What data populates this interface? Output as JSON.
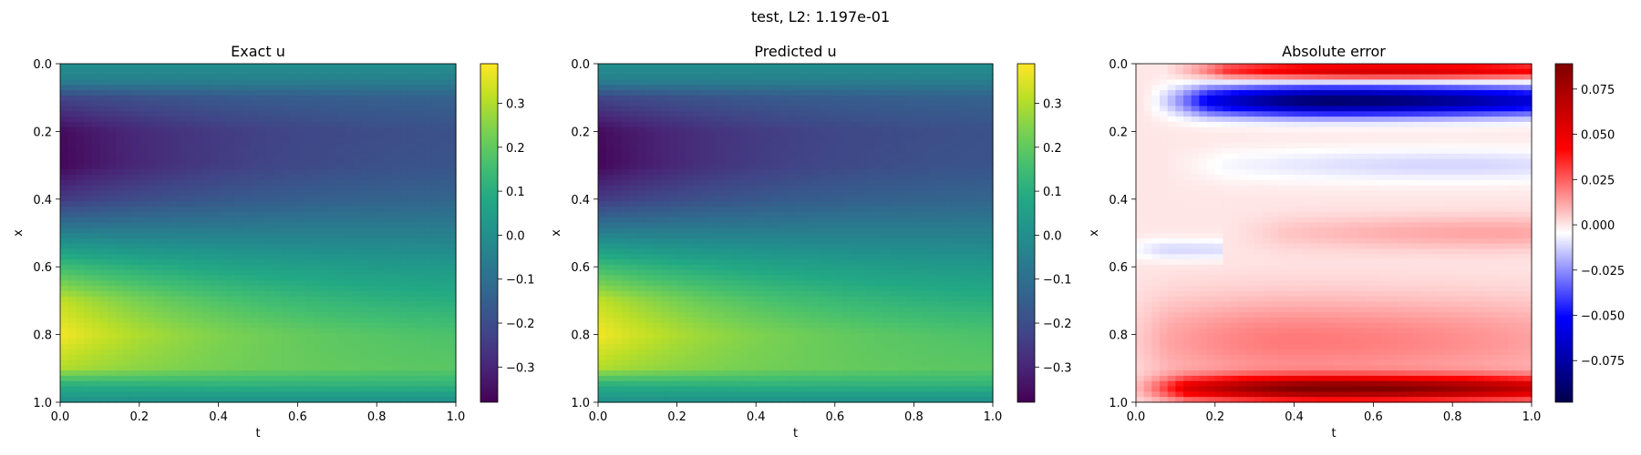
{
  "figure": {
    "suptitle": "test, L2: 1.197e-01"
  },
  "chart_data": [
    {
      "type": "heatmap",
      "title": "Exact u",
      "xlabel": "t",
      "ylabel": "x",
      "xlim": [
        0.0,
        1.0
      ],
      "ylim": [
        1.0,
        0.0
      ],
      "x_ticks": [
        "0.0",
        "0.2",
        "0.4",
        "0.6",
        "0.8",
        "1.0"
      ],
      "y_ticks": [
        "0.0",
        "0.2",
        "0.4",
        "0.6",
        "0.8",
        "1.0"
      ],
      "colormap": "viridis",
      "clim": [
        -0.38,
        0.39
      ],
      "colorbar_ticks": [
        "0.3",
        "0.2",
        "0.1",
        "0.0",
        "−0.1",
        "−0.2",
        "−0.3"
      ],
      "colorbar_tick_values": [
        0.3,
        0.2,
        0.1,
        0.0,
        -0.1,
        -0.2,
        -0.3
      ],
      "field": {
        "description_of_values": "approximate u(x,t) read from colors",
        "x_profile_t0": [
          [
            0.0,
            0.0
          ],
          [
            0.05,
            -0.05
          ],
          [
            0.1,
            -0.22
          ],
          [
            0.2,
            -0.36
          ],
          [
            0.3,
            -0.37
          ],
          [
            0.4,
            -0.25
          ],
          [
            0.5,
            -0.05
          ],
          [
            0.6,
            0.15
          ],
          [
            0.7,
            0.32
          ],
          [
            0.8,
            0.38
          ],
          [
            0.9,
            0.3
          ],
          [
            0.95,
            0.1
          ],
          [
            1.0,
            0.0
          ]
        ],
        "x_profile_t1": [
          [
            0.0,
            0.0
          ],
          [
            0.05,
            -0.05
          ],
          [
            0.1,
            -0.14
          ],
          [
            0.2,
            -0.19
          ],
          [
            0.3,
            -0.18
          ],
          [
            0.4,
            -0.13
          ],
          [
            0.5,
            -0.05
          ],
          [
            0.6,
            0.03
          ],
          [
            0.7,
            0.1
          ],
          [
            0.8,
            0.17
          ],
          [
            0.9,
            0.19
          ],
          [
            0.95,
            0.12
          ],
          [
            1.0,
            0.0
          ]
        ]
      }
    },
    {
      "type": "heatmap",
      "title": "Predicted u",
      "xlabel": "t",
      "ylabel": "x",
      "xlim": [
        0.0,
        1.0
      ],
      "ylim": [
        1.0,
        0.0
      ],
      "x_ticks": [
        "0.0",
        "0.2",
        "0.4",
        "0.6",
        "0.8",
        "1.0"
      ],
      "y_ticks": [
        "0.0",
        "0.2",
        "0.4",
        "0.6",
        "0.8",
        "1.0"
      ],
      "colormap": "viridis",
      "clim": [
        -0.38,
        0.39
      ],
      "colorbar_ticks": [
        "0.3",
        "0.2",
        "0.1",
        "0.0",
        "−0.1",
        "−0.2",
        "−0.3"
      ],
      "colorbar_tick_values": [
        0.3,
        0.2,
        0.1,
        0.0,
        -0.1,
        -0.2,
        -0.3
      ],
      "field": {
        "description_of_values": "approximate u(x,t) read from colors",
        "x_profile_t0": [
          [
            0.0,
            0.0
          ],
          [
            0.05,
            -0.05
          ],
          [
            0.1,
            -0.22
          ],
          [
            0.2,
            -0.36
          ],
          [
            0.3,
            -0.37
          ],
          [
            0.4,
            -0.25
          ],
          [
            0.5,
            -0.05
          ],
          [
            0.6,
            0.15
          ],
          [
            0.7,
            0.32
          ],
          [
            0.8,
            0.38
          ],
          [
            0.9,
            0.3
          ],
          [
            0.95,
            0.1
          ],
          [
            1.0,
            0.0
          ]
        ],
        "x_profile_t1": [
          [
            0.0,
            0.0
          ],
          [
            0.05,
            -0.05
          ],
          [
            0.1,
            -0.14
          ],
          [
            0.2,
            -0.19
          ],
          [
            0.3,
            -0.18
          ],
          [
            0.4,
            -0.13
          ],
          [
            0.5,
            -0.05
          ],
          [
            0.6,
            0.03
          ],
          [
            0.7,
            0.1
          ],
          [
            0.8,
            0.17
          ],
          [
            0.9,
            0.19
          ],
          [
            0.95,
            0.12
          ],
          [
            1.0,
            0.0
          ]
        ]
      }
    },
    {
      "type": "heatmap",
      "title": "Absolute error",
      "xlabel": "t",
      "ylabel": "x",
      "xlim": [
        0.0,
        1.0
      ],
      "ylim": [
        1.0,
        0.0
      ],
      "x_ticks": [
        "0.0",
        "0.2",
        "0.4",
        "0.6",
        "0.8",
        "1.0"
      ],
      "y_ticks": [
        "0.0",
        "0.2",
        "0.4",
        "0.6",
        "0.8",
        "1.0"
      ],
      "colormap": "seismic",
      "clim": [
        -0.098,
        0.089
      ],
      "colorbar_ticks": [
        "0.075",
        "0.050",
        "0.025",
        "0.000",
        "−0.025",
        "−0.050",
        "−0.075"
      ],
      "colorbar_tick_values": [
        0.075,
        0.05,
        0.025,
        0.0,
        -0.025,
        -0.05,
        -0.075
      ],
      "field": {
        "description_of_values": "approximate error(x,t) features read from colors",
        "features": [
          {
            "x": 0.02,
            "t_start": 0.15,
            "t_end": 1.0,
            "peak_t": 0.6,
            "width_x": 0.025,
            "amplitude": 0.06
          },
          {
            "x": 0.11,
            "t_start": 0.1,
            "t_end": 1.0,
            "peak_t": 0.5,
            "width_x": 0.045,
            "amplitude": -0.09
          },
          {
            "x": 0.3,
            "t_start": 0.15,
            "t_end": 1.0,
            "peak_t": 0.8,
            "width_x": 0.05,
            "amplitude": -0.012
          },
          {
            "x": 0.5,
            "t_start": 0.3,
            "t_end": 1.0,
            "peak_t": 0.9,
            "width_x": 0.05,
            "amplitude": 0.012
          },
          {
            "x": 0.55,
            "t_start": 0.0,
            "t_end": 0.2,
            "peak_t": 0.05,
            "width_x": 0.03,
            "amplitude": -0.012
          },
          {
            "x": 0.82,
            "t_start": 0.0,
            "t_end": 1.0,
            "peak_t": 0.4,
            "width_x": 0.13,
            "amplitude": 0.02
          },
          {
            "x": 0.96,
            "t_start": 0.05,
            "t_end": 1.0,
            "peak_t": 0.5,
            "width_x": 0.035,
            "amplitude": 0.085
          }
        ]
      }
    }
  ]
}
